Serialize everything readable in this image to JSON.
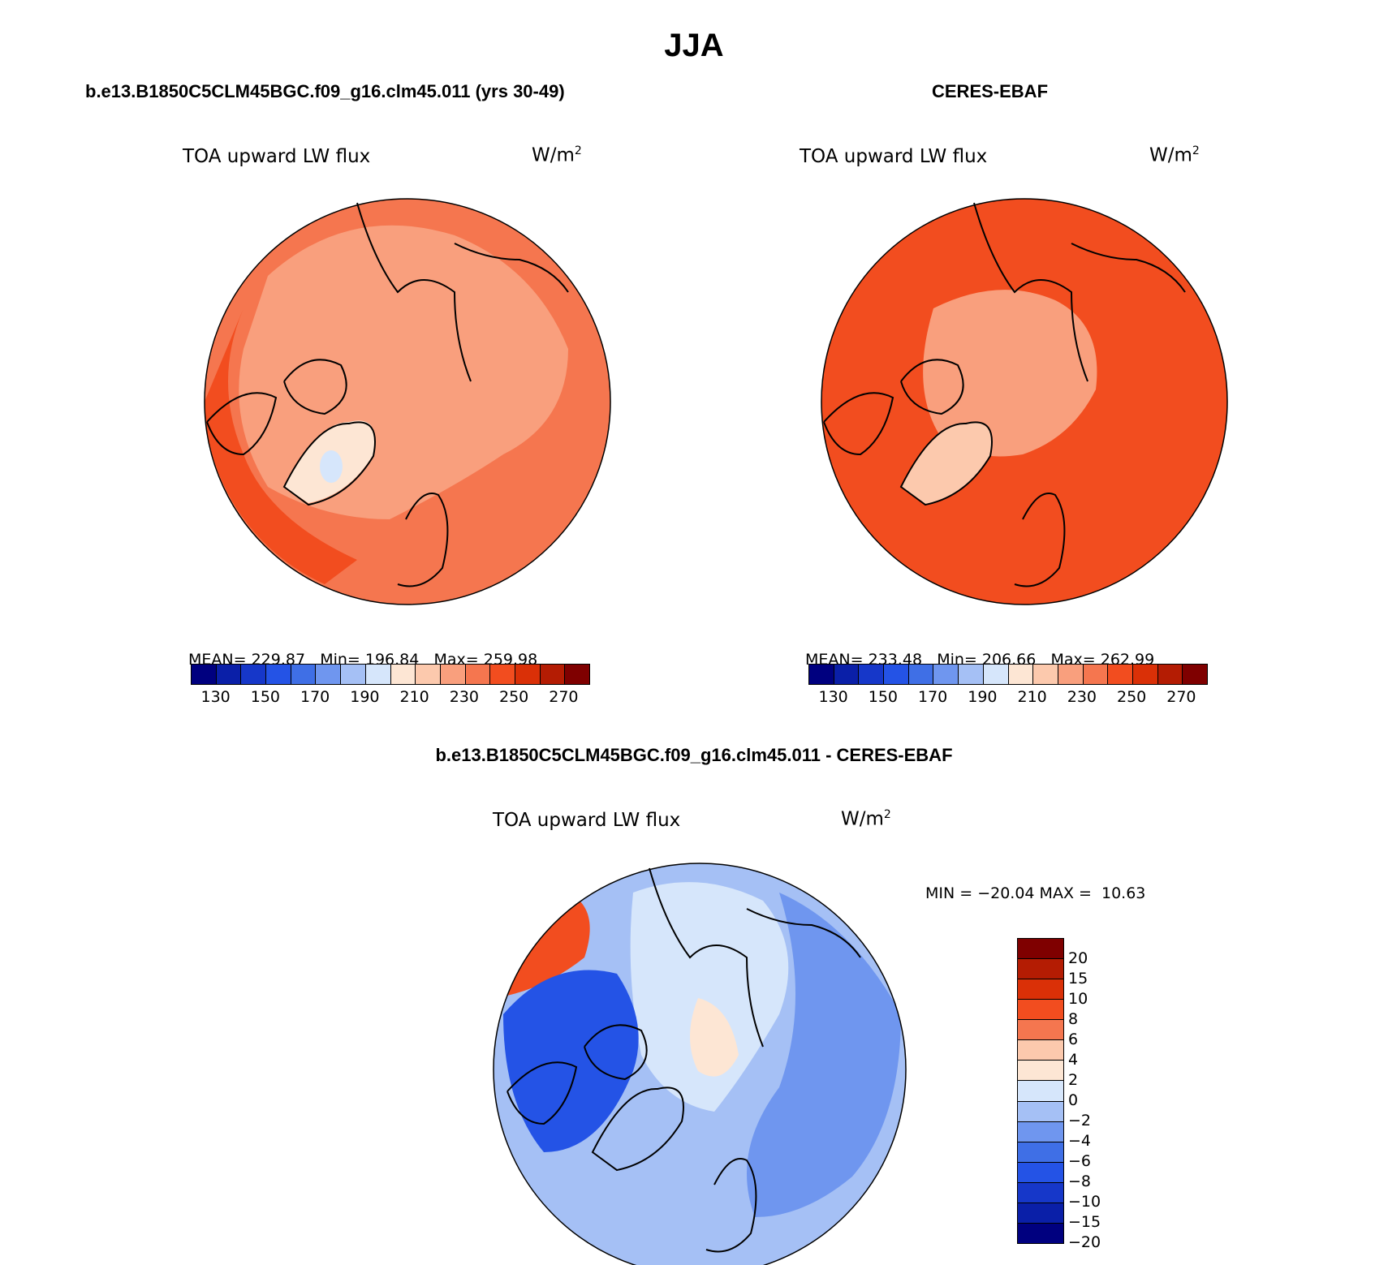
{
  "page": {
    "title": "JJA",
    "bottom_title": "b.e13.B1850C5CLM45BGC.f09_g16.clm45.011 - CERES-EBAF"
  },
  "panels": [
    {
      "heading": "b.e13.B1850C5CLM45BGC.f09_g16.clm45.011 (yrs 30-49)",
      "variable": "TOA upward LW flux",
      "units": "W/m",
      "units_sup": "2",
      "stats": {
        "mean_label": "MEAN=",
        "mean": "229.87",
        "min_label": "Min=",
        "min": "196.84",
        "max_label": "Max=",
        "max": "259.98"
      }
    },
    {
      "heading": "CERES-EBAF",
      "variable": "TOA upward LW flux",
      "units": "W/m",
      "units_sup": "2",
      "stats": {
        "mean_label": "MEAN=",
        "mean": "233.48",
        "min_label": "Min=",
        "min": "206.66",
        "max_label": "Max=",
        "max": "262.99"
      }
    },
    {
      "variable": "TOA upward LW flux",
      "units": "W/m",
      "units_sup": "2",
      "minmax": "MIN = −20.04 MAX =  10.63"
    }
  ],
  "abs_colorbar": {
    "colors": [
      "#00007f",
      "#0a1fa8",
      "#1637c9",
      "#2453e6",
      "#3f6fe6",
      "#6f96ef",
      "#a5c0f5",
      "#d6e6fb",
      "#fde6d4",
      "#fcc9ad",
      "#f99f7d",
      "#f5764f",
      "#f24d1f",
      "#da3007",
      "#b41c03",
      "#7f0000"
    ],
    "labels": [
      "130",
      "150",
      "170",
      "190",
      "210",
      "230",
      "250",
      "270"
    ]
  },
  "diff_colorbar": {
    "colors": [
      "#7f0000",
      "#b41c03",
      "#da3007",
      "#f24d1f",
      "#f5764f",
      "#fcc9ad",
      "#fde6d4",
      "#d6e6fb",
      "#a5c0f5",
      "#6f96ef",
      "#3f6fe6",
      "#2453e6",
      "#1637c9",
      "#0a1fa8",
      "#00007f"
    ],
    "labels": [
      "20",
      "15",
      "10",
      "8",
      "6",
      "4",
      "2",
      "0",
      "−2",
      "−4",
      "−6",
      "−8",
      "−10",
      "−15",
      "−20"
    ]
  },
  "map_colors": {
    "model_base": "#f5764f",
    "model_arctic": "#f99f7d",
    "model_greenland": "#fde6d4",
    "model_icecap": "#d6e6fb",
    "obs_base": "#f24d1f",
    "obs_arctic": "#f99f7d",
    "obs_greenland": "#fcc9ad",
    "diff_base": "#a5c0f5",
    "diff_dark": "#2453e6",
    "diff_mid": "#6f96ef",
    "diff_light": "#d6e6fb",
    "diff_warm": "#fde6d4",
    "diff_red": "#f24d1f",
    "coast": "#000000"
  }
}
